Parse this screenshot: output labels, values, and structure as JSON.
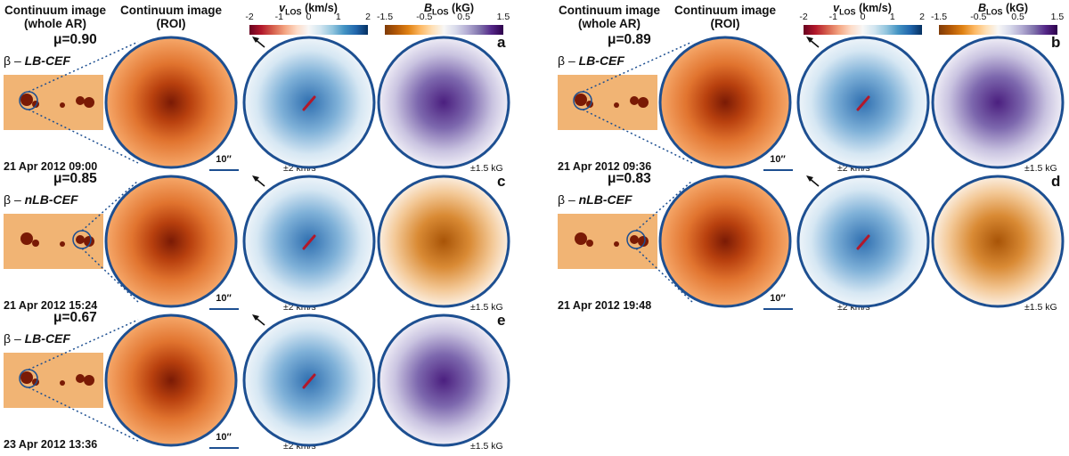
{
  "column_headers": {
    "whole_ar": "Continuum image\n(whole AR)",
    "roi": "Continuum image\n(ROI)",
    "whole_ar_line1": "Continuum image",
    "whole_ar_line2": "(whole AR)",
    "roi_line1": "Continuum image",
    "roi_line2": "(ROI)"
  },
  "colorbars": {
    "vlos": {
      "title": "vLOS (km/s)",
      "title_main": "v",
      "title_sub": "LOS",
      "title_unit": "(km/s)",
      "ticks": [
        "-2",
        "-1",
        "0",
        "1",
        "2"
      ]
    },
    "blos": {
      "title": "BLOS (kG)",
      "title_main": "B",
      "title_sub": "LOS",
      "title_unit": "(kG)",
      "ticks": [
        "-1.5",
        "-0.5",
        "0.5",
        "1.5"
      ]
    }
  },
  "scale_bar": "10″",
  "velocity_range": "±2 km/s",
  "field_range": "±1.5 kG",
  "panels": [
    {
      "letter": "a",
      "mu": "μ=0.90",
      "class_prefix": "β – ",
      "class_name": "LB-CEF",
      "date": "21 Apr 2012 09:00",
      "field": "purple"
    },
    {
      "letter": "b",
      "mu": "μ=0.89",
      "class_prefix": "β – ",
      "class_name": "LB-CEF",
      "date": "21 Apr 2012 09:36",
      "field": "purple"
    },
    {
      "letter": "c",
      "mu": "μ=0.85",
      "class_prefix": "β – ",
      "class_name": "nLB-CEF",
      "date": "21 Apr 2012 15:24",
      "field": "orange"
    },
    {
      "letter": "d",
      "mu": "μ=0.83",
      "class_prefix": "β – ",
      "class_name": "nLB-CEF",
      "date": "21 Apr 2012 19:48",
      "field": "orange"
    },
    {
      "letter": "e",
      "mu": "μ=0.67",
      "class_prefix": "β – ",
      "class_name": "LB-CEF",
      "date": "23 Apr 2012 13:36",
      "field": "purple"
    }
  ],
  "colors": {
    "circle_border": "#1d4f91",
    "continuum_bright": "#f4a262",
    "continuum_dark": "#7a1a05",
    "vlos_red": "#b2182b",
    "vlos_blue": "#2166ac",
    "blos_orange": "#b35806",
    "blos_purple": "#542788"
  }
}
